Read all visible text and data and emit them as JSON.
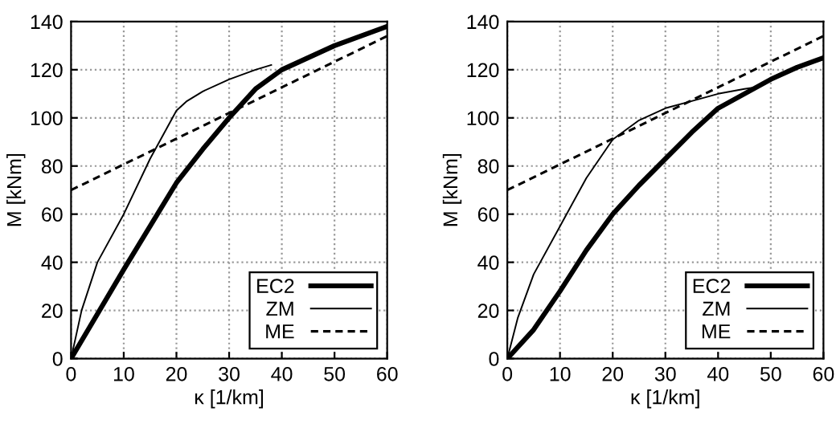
{
  "chart_data": [
    {
      "type": "line",
      "xlabel": "κ [1/km]",
      "ylabel": "M [kNm]",
      "xlim": [
        0,
        60
      ],
      "ylim": [
        0,
        140
      ],
      "xticks": [
        0,
        10,
        20,
        30,
        40,
        50,
        60
      ],
      "yticks": [
        0,
        20,
        40,
        60,
        80,
        100,
        120,
        140
      ],
      "grid": true,
      "legend": "bottom right",
      "series": [
        {
          "name": "EC2",
          "color": "#000000",
          "line_style": "solid",
          "x": [
            0,
            10,
            20,
            25,
            30,
            35,
            40,
            50,
            60
          ],
          "values": [
            0,
            37,
            73,
            87,
            100,
            112,
            120,
            130,
            138
          ]
        },
        {
          "name": "ZM",
          "color": "#000000",
          "line_style": "solid",
          "x": [
            0,
            2,
            5,
            10,
            15,
            20,
            22,
            25,
            30,
            35,
            38
          ],
          "values": [
            0,
            20,
            40,
            60,
            83,
            103,
            107,
            111,
            116,
            120,
            122
          ]
        },
        {
          "name": "ME",
          "color": "#000000",
          "line_style": "dashed",
          "x": [
            0,
            60
          ],
          "values": [
            70,
            134
          ]
        }
      ]
    },
    {
      "type": "line",
      "xlabel": "κ [1/km]",
      "ylabel": "M [kNm]",
      "xlim": [
        0,
        60
      ],
      "ylim": [
        0,
        140
      ],
      "xticks": [
        0,
        10,
        20,
        30,
        40,
        50,
        60
      ],
      "yticks": [
        0,
        20,
        40,
        60,
        80,
        100,
        120,
        140
      ],
      "grid": true,
      "legend": "bottom right",
      "series": [
        {
          "name": "EC2",
          "color": "#000000",
          "line_style": "solid",
          "x": [
            0,
            5,
            10,
            15,
            20,
            25,
            30,
            35,
            40,
            45,
            50,
            55,
            60
          ],
          "values": [
            0,
            12,
            28,
            45,
            60,
            72,
            83,
            94,
            104,
            110,
            116,
            121,
            125
          ]
        },
        {
          "name": "ZM",
          "color": "#000000",
          "line_style": "solid",
          "x": [
            0,
            2,
            5,
            10,
            15,
            20,
            25,
            30,
            35,
            40,
            45,
            48
          ],
          "values": [
            0,
            17,
            35,
            55,
            75,
            91,
            99,
            104,
            107,
            110,
            112,
            113
          ]
        },
        {
          "name": "ME",
          "color": "#000000",
          "line_style": "dashed",
          "x": [
            0,
            60
          ],
          "values": [
            70,
            134
          ]
        }
      ]
    }
  ]
}
